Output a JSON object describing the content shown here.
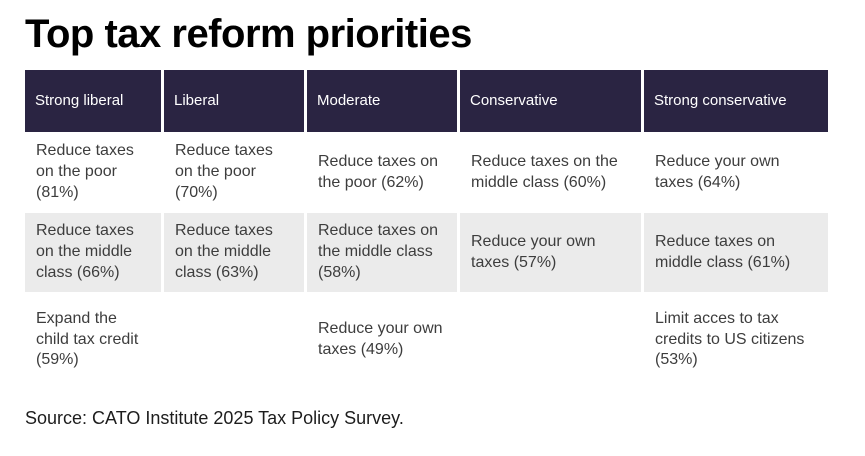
{
  "title": "Top tax reform priorities",
  "source": "Source: CATO Institute 2025 Tax Policy Survey.",
  "colors": {
    "header_bg": "#2a2442",
    "header_text": "#ffffff",
    "alt_row_bg": "#ebebeb",
    "body_text": "#3d3d3d",
    "title_text": "#000000"
  },
  "chart_data": {
    "type": "table",
    "title": "Top tax reform priorities",
    "columns": [
      "Strong liberal",
      "Liberal",
      "Moderate",
      "Conservative",
      "Strong conservative"
    ],
    "rows": [
      [
        "Reduce taxes on the poor (81%)",
        "Reduce taxes on the poor (70%)",
        "Reduce taxes on the poor (62%)",
        "Reduce taxes on the middle class (60%)",
        "Reduce your own taxes (64%)"
      ],
      [
        "Reduce taxes on the middle class (66%)",
        "Reduce taxes on the middle class (63%)",
        "Reduce taxes on the middle class (58%)",
        "Reduce your own taxes (57%)",
        "Reduce taxes on middle class (61%)"
      ],
      [
        "Expand the child tax credit (59%)",
        "",
        "Reduce your own taxes (49%)",
        "",
        "Limit acces to tax credits to US citizens (53%)"
      ]
    ],
    "values_percent": [
      [
        81,
        70,
        62,
        60,
        64
      ],
      [
        66,
        63,
        58,
        57,
        61
      ],
      [
        59,
        null,
        49,
        null,
        53
      ]
    ],
    "source": "Source: CATO Institute 2025 Tax Policy Survey."
  }
}
